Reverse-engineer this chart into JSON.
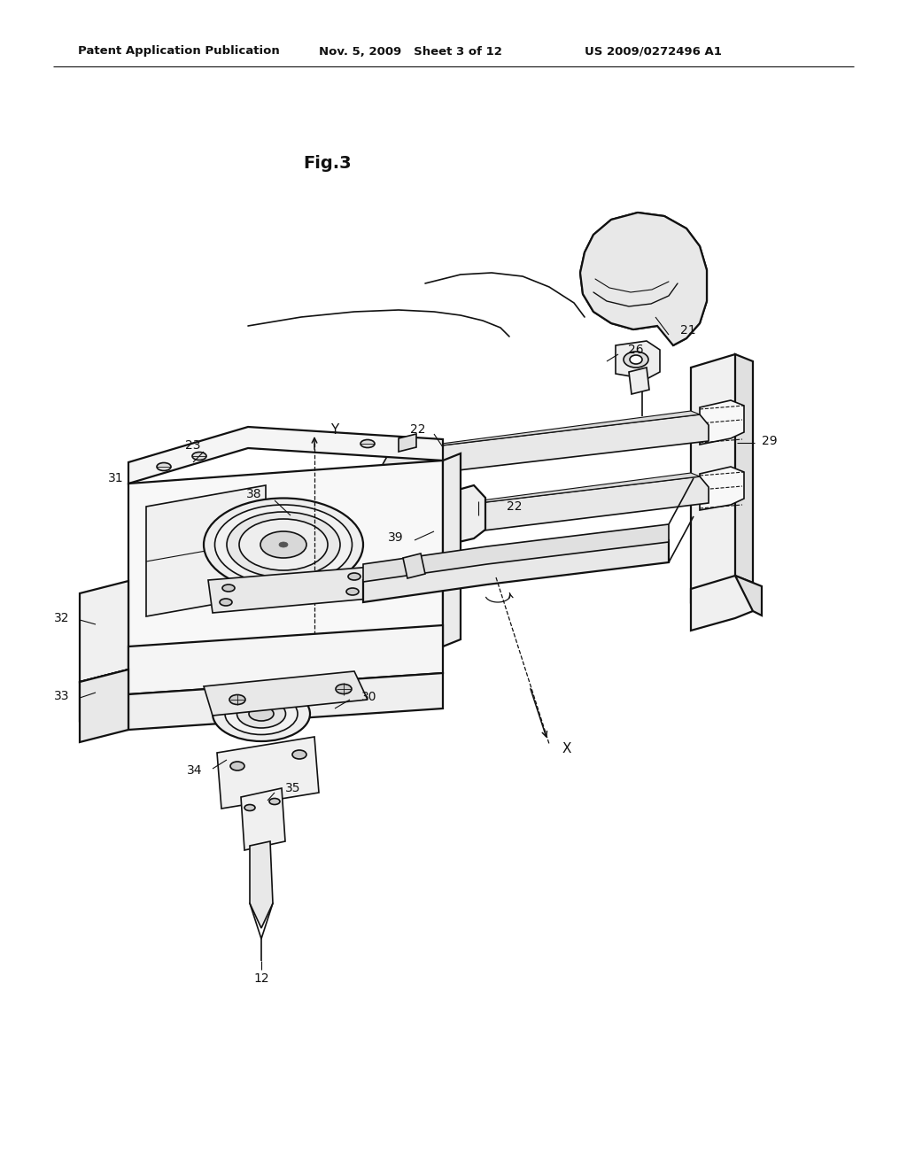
{
  "bg_color": "#ffffff",
  "line_color": "#111111",
  "header_left": "Patent Application Publication",
  "header_mid": "Nov. 5, 2009   Sheet 3 of 12",
  "header_right": "US 2009/0272496 A1",
  "fig_label": "Fig.3"
}
